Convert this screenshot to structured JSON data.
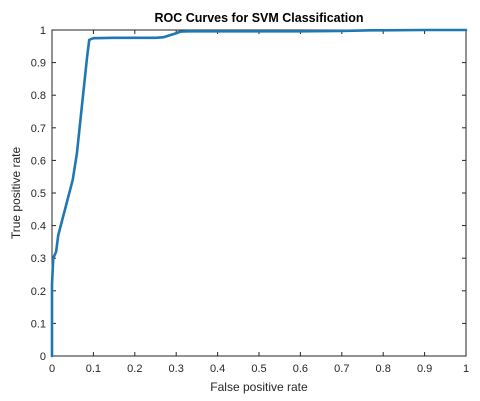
{
  "chart_data": {
    "type": "line",
    "title": "ROC Curves for SVM Classification",
    "xlabel": "False positive rate",
    "ylabel": "True positive rate",
    "xlim": [
      0,
      1
    ],
    "ylim": [
      0,
      1
    ],
    "xticks": [
      "0",
      "0.1",
      "0.2",
      "0.3",
      "0.4",
      "0.5",
      "0.6",
      "0.7",
      "0.8",
      "0.9",
      "1"
    ],
    "yticks": [
      "0",
      "0.1",
      "0.2",
      "0.3",
      "0.4",
      "0.5",
      "0.6",
      "0.7",
      "0.8",
      "0.9",
      "1"
    ],
    "grid": false,
    "box": true,
    "line_color": "#1f77b4",
    "series": [
      {
        "x": [
          0,
          0.0,
          0.003,
          0.01,
          0.015,
          0.05,
          0.06,
          0.07,
          0.08,
          0.085,
          0.09,
          0.1,
          0.15,
          0.2,
          0.25,
          0.27,
          0.3,
          0.31,
          0.33,
          0.4,
          0.5,
          0.6,
          0.7,
          0.77,
          0.8,
          0.9,
          1.0
        ],
        "y": [
          0,
          0.22,
          0.3,
          0.32,
          0.37,
          0.54,
          0.62,
          0.74,
          0.86,
          0.92,
          0.97,
          0.975,
          0.976,
          0.976,
          0.976,
          0.978,
          0.99,
          0.995,
          0.996,
          0.996,
          0.996,
          0.996,
          0.997,
          0.999,
          0.999,
          1.0,
          1.0
        ]
      }
    ]
  }
}
